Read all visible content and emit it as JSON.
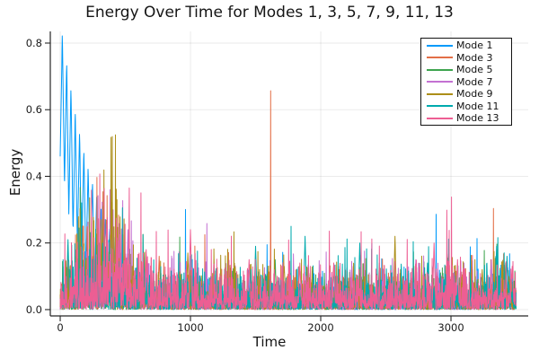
{
  "chart_data": {
    "type": "line",
    "title": "Energy Over Time for Modes 1, 3, 5, 7, 9, 11, 13",
    "xlabel": "Time",
    "ylabel": "Energy",
    "background": "#FFFFFF",
    "grid": true,
    "grid_color": "rgba(0,0,0,0.09)",
    "axis_color": "#262626",
    "legend_position": "top-right-inside",
    "legend_border_color": "#121212",
    "xlim": [
      -76,
      3593
    ],
    "ylim": [
      -0.019,
      0.835
    ],
    "t_range": [
      0,
      3500
    ],
    "xticks": {
      "values": [
        0,
        1000,
        2000,
        3000
      ],
      "labels": [
        "0",
        "1000",
        "2000",
        "3000"
      ]
    },
    "yticks": {
      "values": [
        0,
        0.2,
        0.4,
        0.6,
        0.8
      ],
      "labels": [
        "0.0",
        "0.2",
        "0.4",
        "0.6",
        "0.8"
      ]
    },
    "observations": {
      "mode1_initial_value": 0.45,
      "mode1_peak_value": 0.83,
      "mode1_peak_time": 35,
      "mode1_decays_into_noise_by_t": 600,
      "noise_floor_typical": 0.04,
      "occasional_spike_range": [
        0.15,
        0.31
      ]
    },
    "series": [
      {
        "name": "Mode 1",
        "color": "#009AFA",
        "gen": {
          "kind": "damped_oscillation",
          "peak0": 0.88,
          "peak_tau": 300,
          "valley0": 0.46,
          "valley_tau": 140,
          "period": 33,
          "first_peak_t": 16.5,
          "noise_base": 0.026,
          "seed": 17
        },
        "spikes": []
      },
      {
        "name": "Mode 3",
        "color": "#E36F47",
        "gen": {
          "kind": "noise",
          "noise_base": 0.031,
          "burst_amp": 1.6,
          "burst_t": 280,
          "burst_w": 180,
          "seed": 3
        },
        "spikes": [
          [
            175,
            0.27
          ],
          [
            240,
            0.18
          ],
          [
            760,
            0.16
          ],
          [
            1330,
            0.12
          ],
          [
            2240,
            0.13
          ],
          [
            2960,
            0.11
          ]
        ]
      },
      {
        "name": "Mode 5",
        "color": "#3DA44E",
        "gen": {
          "kind": "noise",
          "noise_base": 0.028,
          "burst_amp": 1.2,
          "burst_t": 350,
          "burst_w": 200,
          "seed": 5
        },
        "spikes": [
          [
            300,
            0.2
          ],
          [
            1650,
            0.15
          ],
          [
            2100,
            0.13
          ],
          [
            2450,
            0.14
          ],
          [
            3420,
            0.14
          ]
        ]
      },
      {
        "name": "Mode 7",
        "color": "#C371D2",
        "gen": {
          "kind": "noise",
          "noise_base": 0.032,
          "burst_amp": 2.2,
          "burst_t": 360,
          "burst_w": 170,
          "seed": 7
        },
        "spikes": [
          [
            230,
            0.22
          ],
          [
            430,
            0.28
          ],
          [
            520,
            0.24
          ],
          [
            1180,
            0.15
          ],
          [
            2730,
            0.15
          ],
          [
            3100,
            0.14
          ],
          [
            3310,
            0.15
          ]
        ]
      },
      {
        "name": "Mode 9",
        "color": "#AC8E18",
        "gen": {
          "kind": "noise",
          "noise_base": 0.032,
          "burst_amp": 2.3,
          "burst_t": 330,
          "burst_w": 190,
          "seed": 9
        },
        "spikes": [
          [
            330,
            0.31
          ],
          [
            390,
            0.26
          ],
          [
            980,
            0.17
          ],
          [
            1720,
            0.13
          ],
          [
            2570,
            0.22
          ],
          [
            3240,
            0.12
          ]
        ]
      },
      {
        "name": "Mode 11",
        "color": "#00AAAE",
        "gen": {
          "kind": "noise",
          "noise_base": 0.034,
          "burst_amp": 1.2,
          "burst_t": 250,
          "burst_w": 160,
          "seed": 11
        },
        "spikes": [
          [
            60,
            0.21
          ],
          [
            640,
            0.17
          ],
          [
            1500,
            0.19
          ],
          [
            1880,
            0.22
          ],
          [
            2300,
            0.2
          ],
          [
            2820,
            0.14
          ],
          [
            3350,
            0.19
          ],
          [
            3430,
            0.16
          ]
        ]
      },
      {
        "name": "Mode 13",
        "color": "#ED5E93",
        "gen": {
          "kind": "noise",
          "noise_base": 0.036,
          "burst_amp": 1.4,
          "burst_t": 420,
          "burst_w": 260,
          "seed": 13
        },
        "spikes": [
          [
            660,
            0.18
          ],
          [
            1000,
            0.24
          ],
          [
            1450,
            0.15
          ],
          [
            1840,
            0.14
          ],
          [
            2100,
            0.14
          ],
          [
            2870,
            0.2
          ],
          [
            3050,
            0.15
          ],
          [
            3470,
            0.13
          ]
        ]
      }
    ]
  }
}
